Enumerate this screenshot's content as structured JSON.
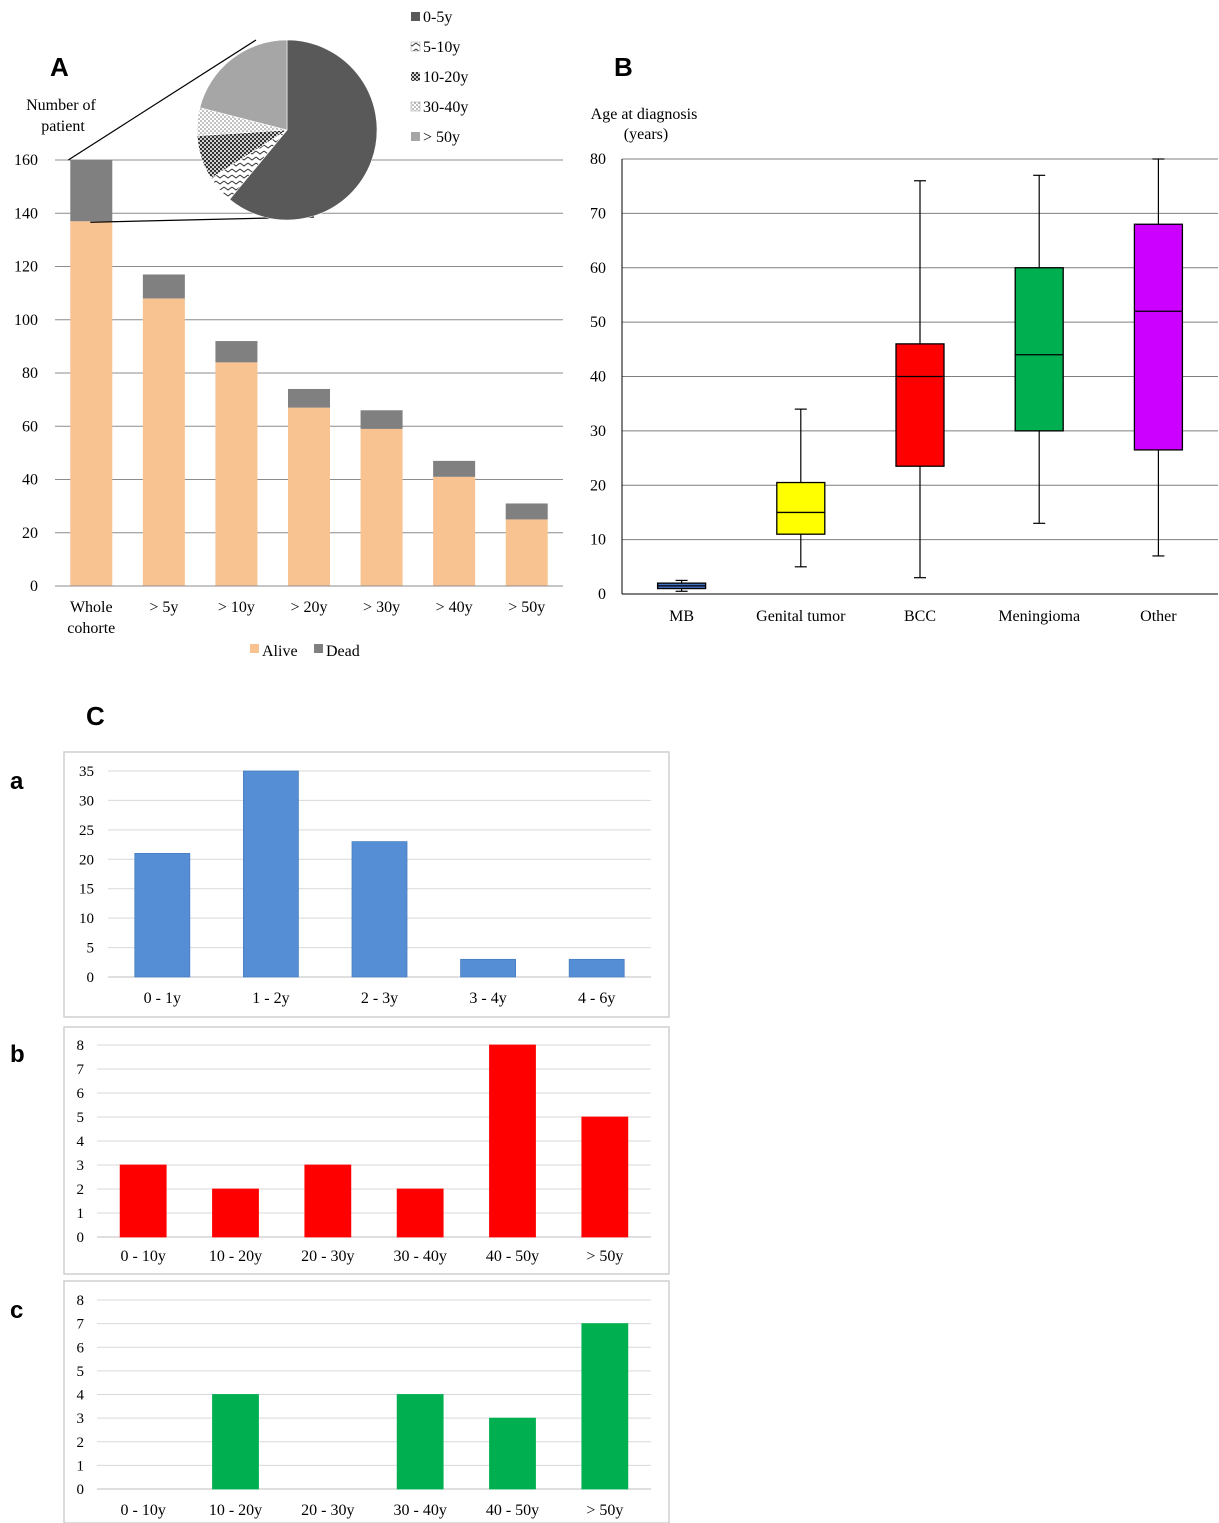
{
  "figure": {
    "panel_labels": {
      "A": "A",
      "B": "B",
      "C": "C",
      "a": "a",
      "b": "b",
      "c": "c"
    }
  },
  "chart_data": [
    {
      "id": "A",
      "type": "bar",
      "stacked": true,
      "ylabel": "Number of patient",
      "categories": [
        "Whole cohorte",
        "> 5y",
        "> 10y",
        "> 20y",
        "> 30y",
        "> 40y",
        "> 50y"
      ],
      "series": [
        {
          "name": "Alive",
          "values": [
            137,
            108,
            84,
            67,
            59,
            41,
            25
          ],
          "color": "#F8C291"
        },
        {
          "name": "Dead",
          "values": [
            23,
            9,
            8,
            7,
            7,
            6,
            6
          ],
          "color": "#808080"
        }
      ],
      "ylim": [
        0,
        160
      ],
      "yticks": [
        0,
        20,
        40,
        60,
        80,
        100,
        120,
        140,
        160
      ],
      "grid": true,
      "legend": "bottom"
    },
    {
      "id": "A-inset",
      "type": "pie",
      "categories": [
        "0-5y",
        "5-10y",
        "10-20y",
        "30-40y",
        "> 50y"
      ],
      "values": [
        61,
        5,
        8,
        5,
        21
      ],
      "colors": [
        "#595959",
        "#ffffff",
        "#7f7f7f",
        "#e4e4e4",
        "#a6a6a6"
      ],
      "patterns": [
        "solid",
        "chevron",
        "dense",
        "dots",
        "solid"
      ],
      "legend": "right"
    },
    {
      "id": "B",
      "type": "box",
      "ylabel": "Age at diagnosis (years)",
      "categories": [
        "MB",
        "Genital tumor",
        "BCC",
        "Meningioma",
        "Other"
      ],
      "boxes": [
        {
          "min": 0.5,
          "q1": 1,
          "median": 1.5,
          "q3": 2,
          "max": 2.5,
          "color": "#4472C4"
        },
        {
          "min": 5,
          "q1": 11,
          "median": 15,
          "q3": 20.5,
          "max": 34,
          "color": "#FFFF00"
        },
        {
          "min": 3,
          "q1": 23.5,
          "median": 40,
          "q3": 46,
          "max": 76,
          "color": "#FF0000"
        },
        {
          "min": 13,
          "q1": 30,
          "median": 44,
          "q3": 60,
          "max": 77,
          "color": "#00B050"
        },
        {
          "min": 7,
          "q1": 26.5,
          "median": 52,
          "q3": 68,
          "max": 80,
          "color": "#CC00FF"
        }
      ],
      "ylim": [
        0,
        80
      ],
      "yticks": [
        0,
        10,
        20,
        30,
        40,
        50,
        60,
        70,
        80
      ],
      "grid": true
    },
    {
      "id": "Ca",
      "type": "bar",
      "categories": [
        "0 - 1y",
        "1 - 2y",
        "2 - 3y",
        "3 - 4y",
        "4 - 6y"
      ],
      "values": [
        21,
        35,
        23,
        3,
        3
      ],
      "color": "#558ED5",
      "ylim": [
        0,
        35
      ],
      "yticks": [
        0,
        5,
        10,
        15,
        20,
        25,
        30,
        35
      ],
      "grid": true
    },
    {
      "id": "Cb",
      "type": "bar",
      "categories": [
        "0 - 10y",
        "10 - 20y",
        "20 - 30y",
        "30 - 40y",
        "40 - 50y",
        "> 50y"
      ],
      "values": [
        3,
        2,
        3,
        2,
        8,
        5
      ],
      "color": "#FF0000",
      "ylim": [
        0,
        8
      ],
      "yticks": [
        0,
        1,
        2,
        3,
        4,
        5,
        6,
        7,
        8
      ],
      "grid": true
    },
    {
      "id": "Cc",
      "type": "bar",
      "categories": [
        "0 - 10y",
        "10 - 20y",
        "20 - 30y",
        "30 - 40y",
        "40 - 50y",
        "> 50y"
      ],
      "values": [
        0,
        4,
        0,
        4,
        3,
        7
      ],
      "color": "#00B050",
      "ylim": [
        0,
        8
      ],
      "yticks": [
        0,
        1,
        2,
        3,
        4,
        5,
        6,
        7,
        8
      ],
      "grid": true
    }
  ]
}
